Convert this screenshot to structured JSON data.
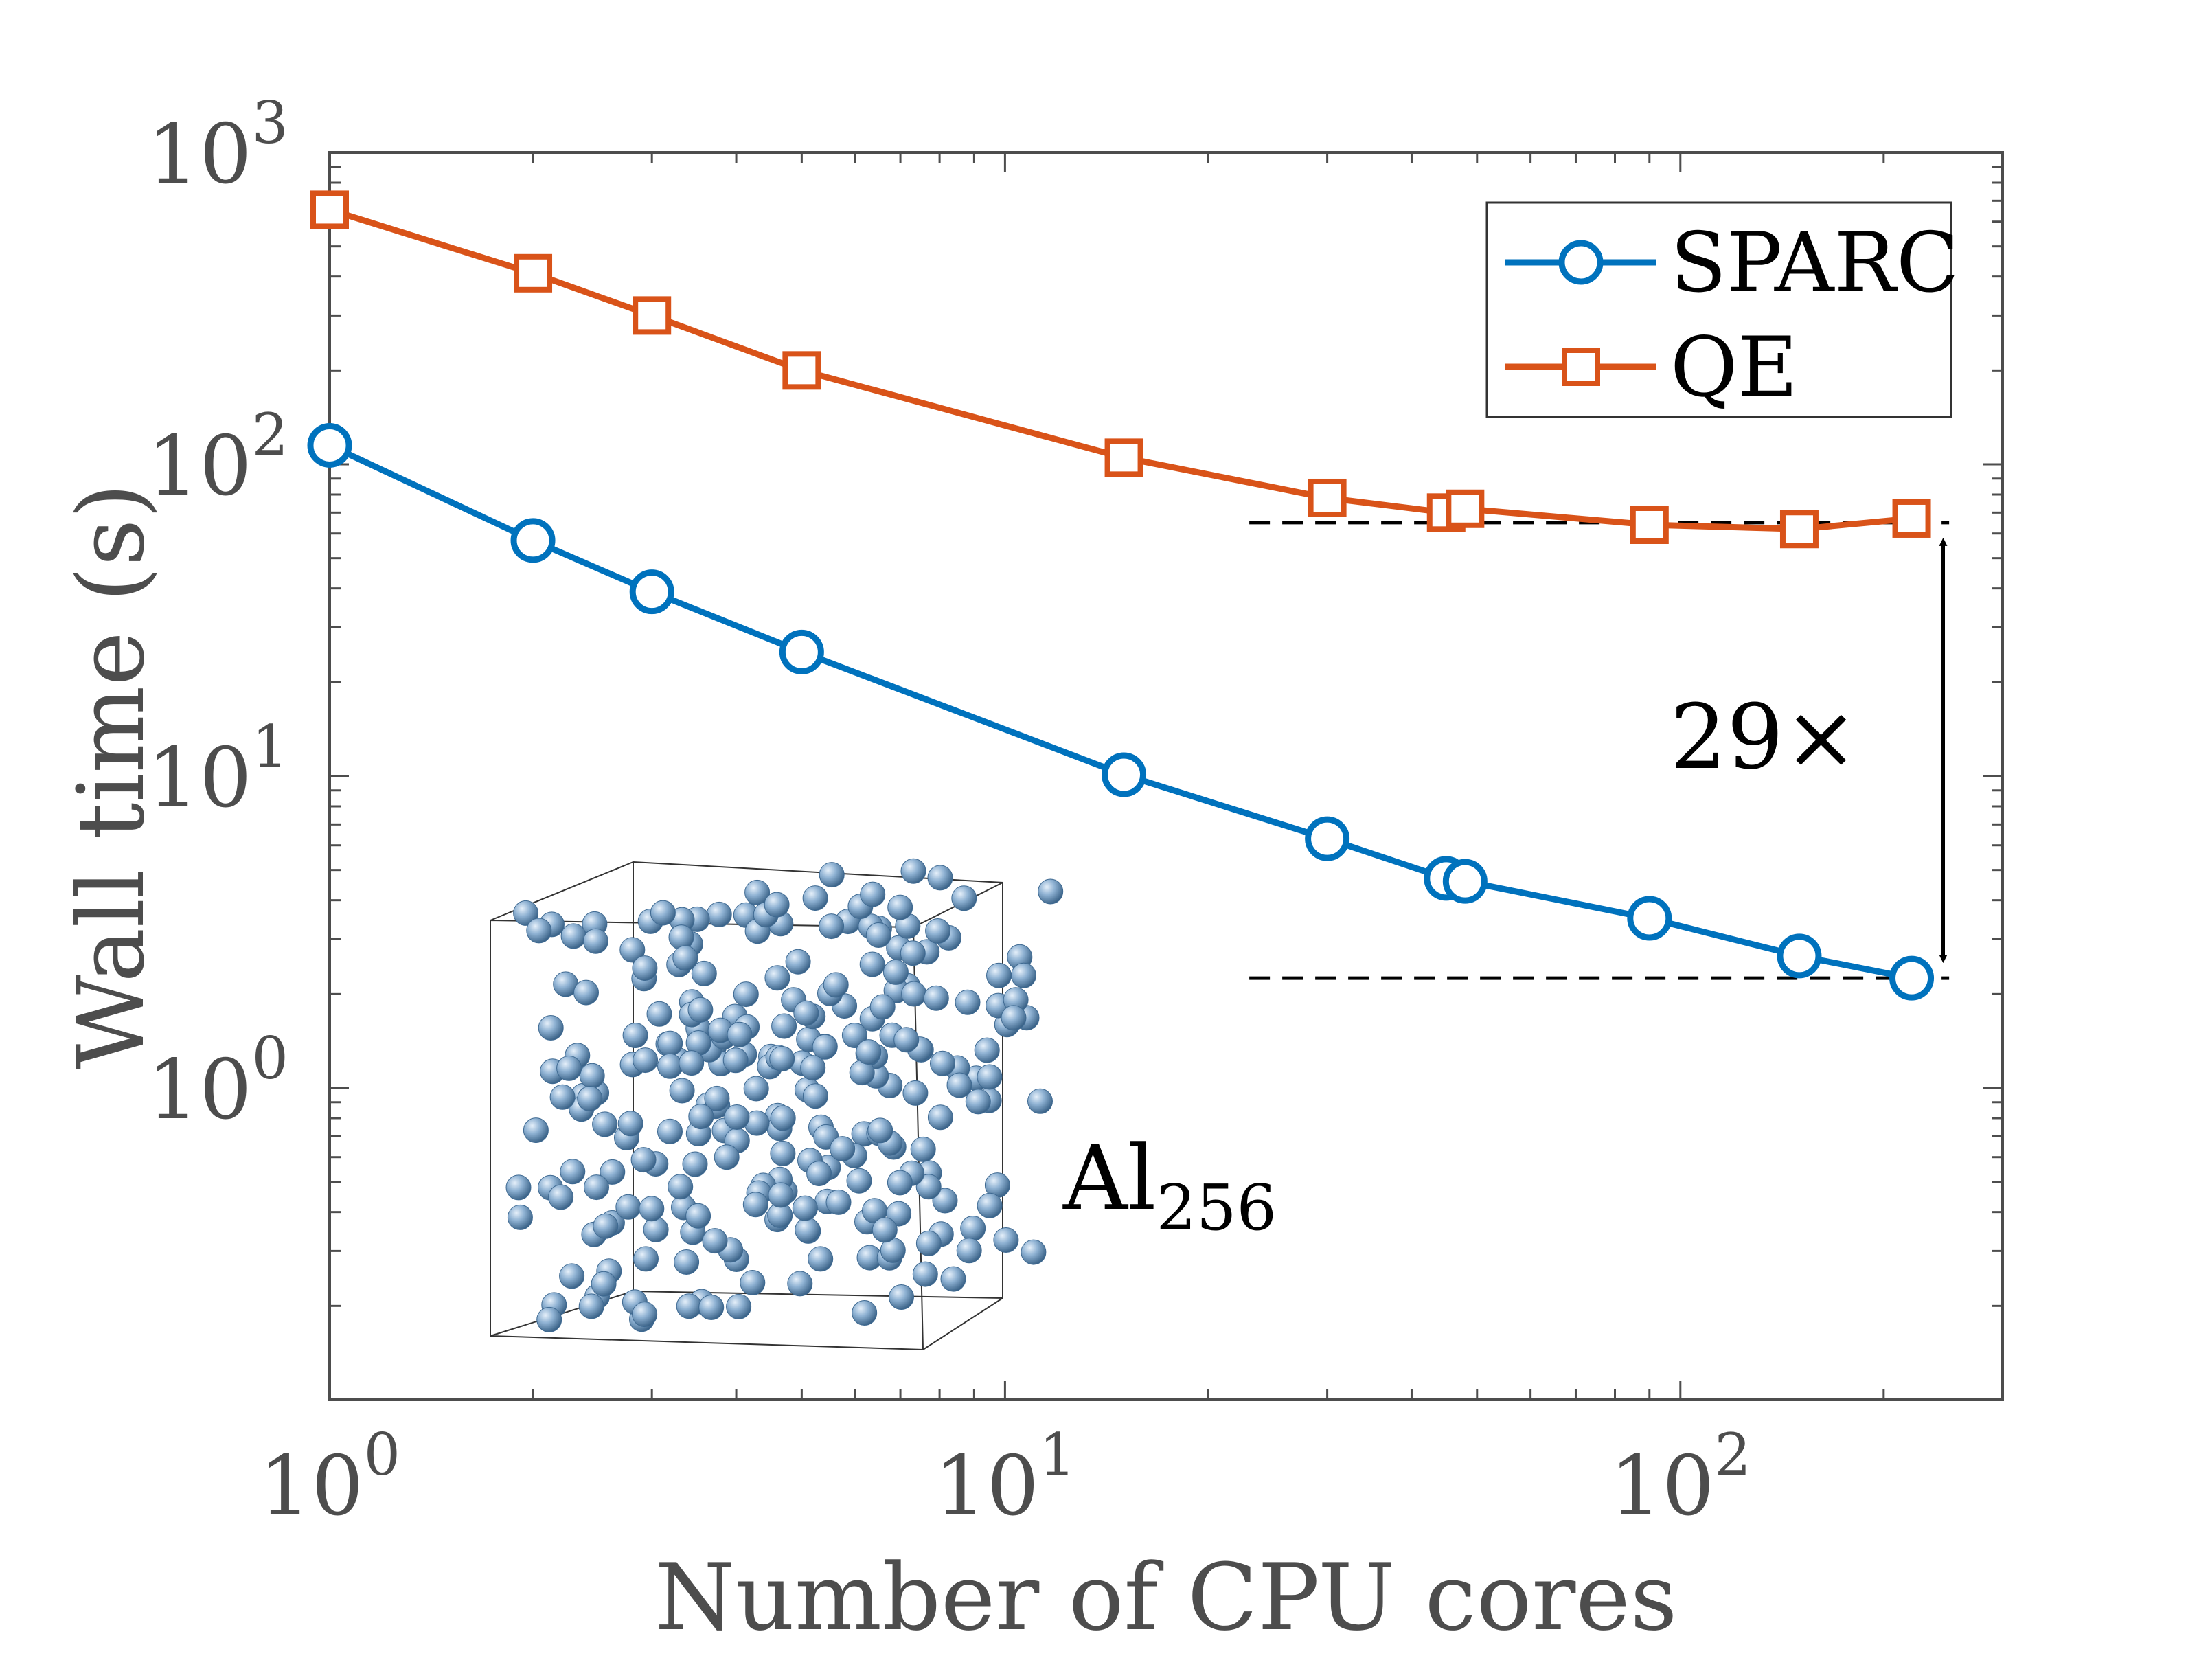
{
  "chart_data": {
    "type": "line",
    "xscale": "log",
    "yscale": "log",
    "xlim": [
      1,
      300
    ],
    "ylim": [
      0.1,
      1000
    ],
    "xlabel": "Number of CPU cores",
    "ylabel": "Wall time (s)",
    "x_ticks": [
      {
        "value": 1,
        "base": "10",
        "exp": "0"
      },
      {
        "value": 10,
        "base": "10",
        "exp": "1"
      },
      {
        "value": 100,
        "base": "10",
        "exp": "2"
      }
    ],
    "y_ticks": [
      {
        "value": 1,
        "base": "10",
        "exp": "0"
      },
      {
        "value": 10,
        "base": "10",
        "exp": "1"
      },
      {
        "value": 100,
        "base": "10",
        "exp": "2"
      },
      {
        "value": 1000,
        "base": "10",
        "exp": "3"
      }
    ],
    "grid": false,
    "legend_position": "top-right",
    "series": [
      {
        "name": "SPARC",
        "color": "#0072BD",
        "marker": "circle",
        "x": [
          1,
          2,
          3,
          5,
          15,
          30,
          45,
          48,
          90,
          150,
          220
        ],
        "y": [
          115,
          57,
          39,
          25,
          10.1,
          6.3,
          4.7,
          4.6,
          3.5,
          2.65,
          2.25
        ]
      },
      {
        "name": "QE",
        "color": "#D95319",
        "marker": "square",
        "x": [
          1,
          2,
          3,
          5,
          15,
          30,
          45,
          48,
          90,
          150,
          220
        ],
        "y": [
          655,
          410,
          300,
          200,
          105,
          78,
          70,
          72,
          64,
          62,
          67
        ]
      }
    ],
    "annotations": {
      "speedup_label": "29×",
      "speedup_top": 65,
      "speedup_bottom": 2.25,
      "dashed_x_from": 23,
      "dashed_x_to": 250,
      "arrow_x": 245,
      "inset_label_base": "Al",
      "inset_label_sub": "256"
    }
  },
  "colors": {
    "axis": "#4d4d4d",
    "text_dark": "#000000",
    "atom_fill": "#7aa0c4",
    "atom_edge": "#3f6a92"
  }
}
